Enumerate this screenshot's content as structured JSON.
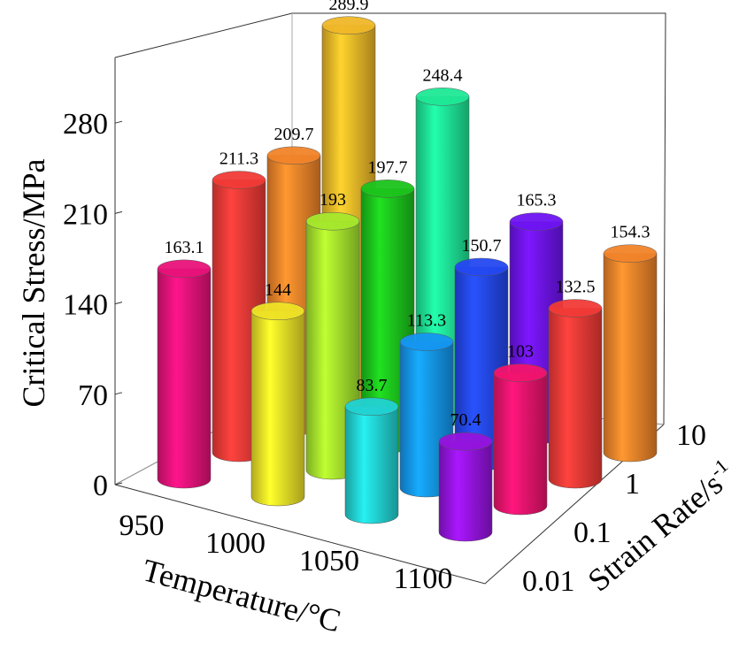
{
  "chart_data": {
    "type": "bar3d",
    "zlabel": "Critical Stress/MPa",
    "xlabel": "Temperature/°C",
    "ylabel_main": "Strain Rate/s",
    "ylabel_sup": "-1",
    "x_categories": [
      "950",
      "1000",
      "1050",
      "1100"
    ],
    "y_categories": [
      "0.01",
      "0.1",
      "1",
      "10"
    ],
    "z_ticks": [
      "0",
      "70",
      "140",
      "210",
      "280"
    ],
    "zlim": [
      0,
      320
    ],
    "values": [
      [
        163.1,
        211.3,
        209.7,
        289.9
      ],
      [
        144,
        193,
        197.7,
        248.4
      ],
      [
        83.7,
        113.3,
        150.7,
        165.3
      ],
      [
        70.4,
        103,
        132.5,
        154.3
      ]
    ],
    "labels": [
      [
        "163.1",
        "211.3",
        "209.7",
        "289.9"
      ],
      [
        "144",
        "193",
        "197.7",
        "248.4"
      ],
      [
        "83.7",
        "113.3",
        "150.7",
        "165.3"
      ],
      [
        "70.4",
        "103",
        "132.5",
        "154.3"
      ]
    ],
    "colors": [
      [
        "#e8127a",
        "#f23a36",
        "#f2842a",
        "#f0b828"
      ],
      [
        "#efe226",
        "#a6e82c",
        "#1cc41c",
        "#1ee896"
      ],
      [
        "#22d2d2",
        "#1496f2",
        "#2448f2",
        "#6e14f2"
      ],
      [
        "#9414de",
        "#f2146e",
        "#f23a36",
        "#f2842a"
      ]
    ]
  }
}
